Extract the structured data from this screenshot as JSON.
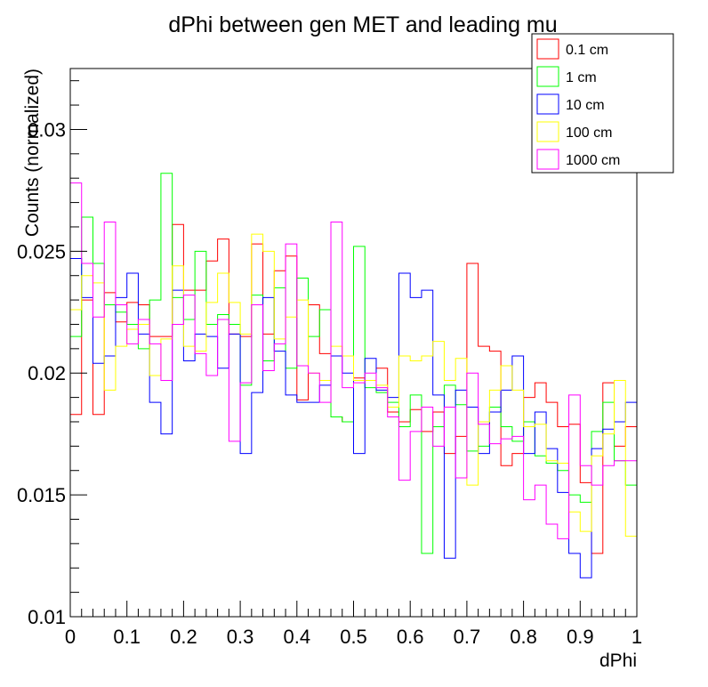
{
  "chart_data": {
    "type": "line",
    "title": "dPhi between gen MET and leading mu",
    "xlabel": "dPhi",
    "ylabel": "Counts (normalized)",
    "xlim": [
      0,
      1
    ],
    "ylim": [
      0.01,
      0.0325
    ],
    "x_ticks": [
      "0",
      "0.1",
      "0.2",
      "0.3",
      "0.4",
      "0.5",
      "0.6",
      "0.7",
      "0.8",
      "0.9",
      "1"
    ],
    "y_ticks": [
      "0.01",
      "0.015",
      "0.02",
      "0.025",
      "0.03"
    ],
    "bins": 50,
    "grid": false,
    "legend_position": "top-right",
    "series": [
      {
        "name": "0.1 cm",
        "color": "#ff0000",
        "values": [
          0.0183,
          0.023,
          0.0183,
          0.0233,
          0.0221,
          0.0229,
          0.0228,
          0.0215,
          0.0215,
          0.0261,
          0.0234,
          0.0234,
          0.0246,
          0.0255,
          0.0216,
          0.0215,
          0.0253,
          0.0216,
          0.0242,
          0.0248,
          0.0189,
          0.0228,
          0.0208,
          0.0182,
          0.018,
          0.0198,
          0.0197,
          0.0202,
          0.0184,
          0.018,
          0.0185,
          0.0176,
          0.0184,
          0.0167,
          0.0174,
          0.0245,
          0.0211,
          0.0209,
          0.0162,
          0.0167,
          0.019,
          0.0196,
          0.0188,
          0.0178,
          0.0179,
          0.0155,
          0.0126,
          0.0196,
          0.017,
          0.0178
        ]
      },
      {
        "name": "1 cm",
        "color": "#00ff00",
        "values": [
          0.0215,
          0.0264,
          0.0245,
          0.0228,
          0.0225,
          0.022,
          0.021,
          0.023,
          0.0282,
          0.0231,
          0.0222,
          0.025,
          0.022,
          0.0224,
          0.022,
          0.0195,
          0.0232,
          0.0205,
          0.0235,
          0.0202,
          0.0239,
          0.0215,
          0.0226,
          0.0182,
          0.018,
          0.0252,
          0.0194,
          0.0192,
          0.0188,
          0.0178,
          0.0191,
          0.0126,
          0.0178,
          0.0195,
          0.0187,
          0.0168,
          0.017,
          0.0186,
          0.0178,
          0.0172,
          0.018,
          0.0166,
          0.0163,
          0.016,
          0.015,
          0.0147,
          0.0176,
          0.0188,
          0.0164,
          0.0154
        ]
      },
      {
        "name": "10 cm",
        "color": "#0000ff",
        "values": [
          0.0247,
          0.0231,
          0.0204,
          0.0207,
          0.0231,
          0.0241,
          0.0216,
          0.0188,
          0.0175,
          0.0234,
          0.0205,
          0.0216,
          0.0215,
          0.0202,
          0.0216,
          0.0167,
          0.0192,
          0.0231,
          0.0209,
          0.0191,
          0.0188,
          0.0188,
          0.0195,
          0.0207,
          0.02,
          0.0167,
          0.0206,
          0.0193,
          0.019,
          0.0241,
          0.0231,
          0.0234,
          0.0191,
          0.0124,
          0.0193,
          0.0186,
          0.0167,
          0.0184,
          0.0193,
          0.0207,
          0.0167,
          0.0184,
          0.0169,
          0.0151,
          0.0126,
          0.0116,
          0.0169,
          0.0177,
          0.018,
          0.0188
        ]
      },
      {
        "name": "100 cm",
        "color": "#ffff00",
        "values": [
          0.0226,
          0.024,
          0.0237,
          0.0193,
          0.0211,
          0.0218,
          0.022,
          0.0199,
          0.0214,
          0.0244,
          0.0211,
          0.0209,
          0.0229,
          0.0241,
          0.0229,
          0.0216,
          0.0257,
          0.025,
          0.0214,
          0.0223,
          0.023,
          0.02,
          0.0197,
          0.0211,
          0.0207,
          0.0197,
          0.0197,
          0.0195,
          0.0186,
          0.0207,
          0.0205,
          0.0207,
          0.0213,
          0.0197,
          0.0206,
          0.0154,
          0.018,
          0.0193,
          0.0203,
          0.0193,
          0.0178,
          0.0179,
          0.0164,
          0.0163,
          0.0143,
          0.0135,
          0.0166,
          0.0175,
          0.0197,
          0.0133
        ]
      },
      {
        "name": "1000 cm",
        "color": "#ff00ff",
        "values": [
          0.0278,
          0.0245,
          0.0223,
          0.0262,
          0.0228,
          0.0212,
          0.0222,
          0.0212,
          0.0197,
          0.022,
          0.0232,
          0.0208,
          0.0199,
          0.0222,
          0.0172,
          0.0196,
          0.0228,
          0.0201,
          0.0212,
          0.0253,
          0.0203,
          0.02,
          0.0188,
          0.0262,
          0.0194,
          0.0196,
          0.02,
          0.0194,
          0.0182,
          0.0156,
          0.0176,
          0.0186,
          0.017,
          0.0186,
          0.0157,
          0.02,
          0.0179,
          0.0171,
          0.0173,
          0.0174,
          0.0148,
          0.0154,
          0.0138,
          0.0132,
          0.0191,
          0.0162,
          0.0154,
          0.0162,
          0.0164,
          0.0164
        ]
      }
    ]
  }
}
